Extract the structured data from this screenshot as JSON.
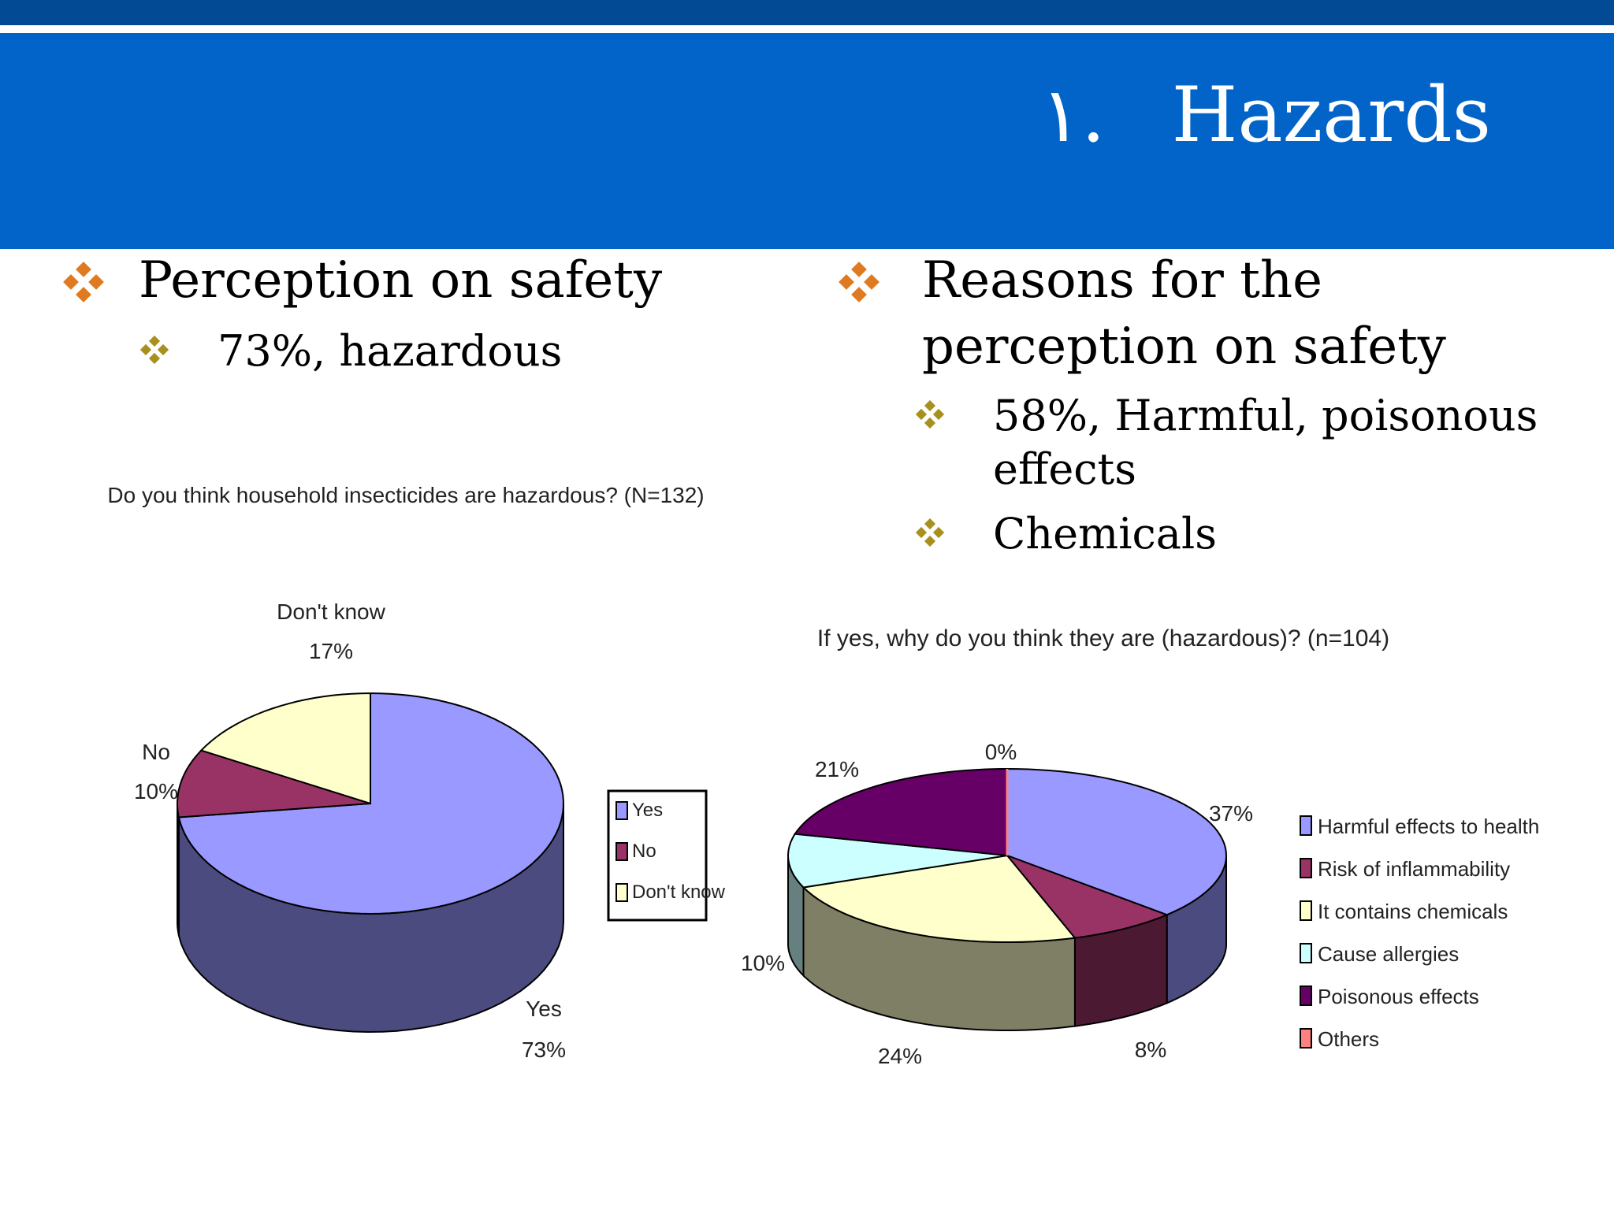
{
  "slide": {
    "number": "١.",
    "title": "Hazards"
  },
  "colors": {
    "top_bar": "#024a94",
    "banner": "#0264c8",
    "bullet_orange": "#e07a20",
    "bullet_olive": "#a8901f"
  },
  "left": {
    "bullet": "Perception on safety",
    "sub_bullets": [
      "73%, hazardous"
    ]
  },
  "right": {
    "bullet_line1": "Reasons for the",
    "bullet_line2": "perception on safety",
    "sub_bullets": [
      {
        "line1": "58%, Harmful, poisonous",
        "line2": "effects"
      },
      {
        "line1": "Chemicals",
        "line2": ""
      }
    ]
  },
  "chart_data": [
    {
      "type": "pie",
      "style": "3d",
      "title": "Do you think household insecticides are hazardous? (N=132)",
      "categories": [
        "Yes",
        "No",
        "Don't know"
      ],
      "values": [
        73,
        10,
        17
      ],
      "value_labels": [
        "73%",
        "10%",
        "17%"
      ],
      "colors": [
        "#9999ff",
        "#993366",
        "#ffffcc"
      ],
      "side_colors": [
        "#4b4b7f",
        "#4c1933",
        "#7f7f66"
      ],
      "legend": [
        "Yes",
        "No",
        "Don't know"
      ],
      "legend_position": "right"
    },
    {
      "type": "pie",
      "style": "3d",
      "title": "If yes, why do you think they are (hazardous)? (n=104)",
      "categories": [
        "Harmful effects to health",
        "Risk of inflammability",
        "It contains chemicals",
        "Cause allergies",
        "Poisonous effects",
        "Others"
      ],
      "values": [
        37,
        8,
        24,
        10,
        21,
        0
      ],
      "value_labels": [
        "37%",
        "8%",
        "24%",
        "10%",
        "21%",
        "0%"
      ],
      "colors": [
        "#9999ff",
        "#993366",
        "#ffffcc",
        "#ccffff",
        "#660066",
        "#ff8080"
      ],
      "side_colors": [
        "#4b4b7f",
        "#4c1933",
        "#7f7f66",
        "#667f7f",
        "#330033",
        "#7f4040"
      ],
      "legend": [
        "Harmful effects to health",
        "Risk of inflammability",
        "It contains chemicals",
        "Cause allergies",
        "Poisonous effects",
        "Others"
      ],
      "legend_position": "right"
    }
  ]
}
